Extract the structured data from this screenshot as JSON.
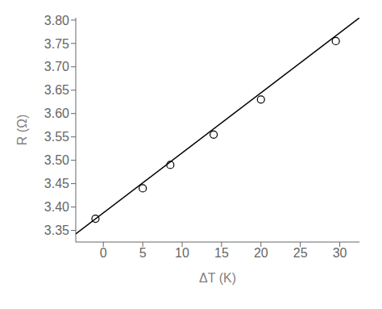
{
  "chart_data": {
    "type": "scatter",
    "xlabel": "ΔT (K)",
    "ylabel": "R (Ω)",
    "series": [
      {
        "type": "scatter",
        "x": [
          -1,
          5,
          8.5,
          14,
          20,
          29.5
        ],
        "values": [
          3.375,
          3.44,
          3.49,
          3.555,
          3.63,
          3.755
        ],
        "color": "#000000",
        "marker": "open circle"
      },
      {
        "type": "line",
        "x": [
          -3.5,
          32.5
        ],
        "values": [
          3.342325,
          3.804925
        ],
        "color": "#000000",
        "line_style": "solid"
      }
    ],
    "xlim": [
      -3.5,
      32.5
    ],
    "ylim": [
      3.325,
      3.805
    ],
    "xticks": [
      0,
      5,
      10,
      15,
      20,
      25,
      30
    ],
    "yticks": [
      3.35,
      {
        "value": 3.4,
        "label": "3.40"
      },
      3.45,
      {
        "value": 3.5,
        "label": "3.50"
      },
      3.55,
      {
        "value": 3.6,
        "label": "3.60"
      },
      3.65,
      {
        "value": 3.7,
        "label": "3.70"
      },
      3.75,
      {
        "value": 3.8,
        "label": "3.80"
      }
    ],
    "grid": false
  }
}
